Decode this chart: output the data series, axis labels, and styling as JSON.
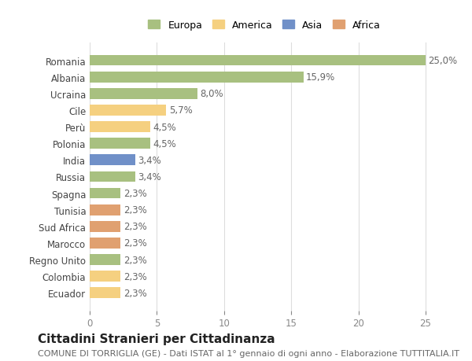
{
  "countries": [
    "Romania",
    "Albania",
    "Ucraina",
    "Cile",
    "Perù",
    "Polonia",
    "India",
    "Russia",
    "Spagna",
    "Tunisia",
    "Sud Africa",
    "Marocco",
    "Regno Unito",
    "Colombia",
    "Ecuador"
  ],
  "values": [
    25.0,
    15.9,
    8.0,
    5.7,
    4.5,
    4.5,
    3.4,
    3.4,
    2.3,
    2.3,
    2.3,
    2.3,
    2.3,
    2.3,
    2.3
  ],
  "colors": [
    "#a8c080",
    "#a8c080",
    "#a8c080",
    "#f5d080",
    "#f5d080",
    "#a8c080",
    "#7090c8",
    "#a8c080",
    "#a8c080",
    "#e0a070",
    "#e0a070",
    "#e0a070",
    "#a8c080",
    "#f5d080",
    "#f5d080"
  ],
  "labels": [
    "25,0%",
    "15,9%",
    "8,0%",
    "5,7%",
    "4,5%",
    "4,5%",
    "3,4%",
    "3,4%",
    "2,3%",
    "2,3%",
    "2,3%",
    "2,3%",
    "2,3%",
    "2,3%",
    "2,3%"
  ],
  "legend_labels": [
    "Europa",
    "America",
    "Asia",
    "Africa"
  ],
  "legend_colors": [
    "#a8c080",
    "#f5d080",
    "#7090c8",
    "#e0a070"
  ],
  "title": "Cittadini Stranieri per Cittadinanza",
  "subtitle": "COMUNE DI TORRIGLIA (GE) - Dati ISTAT al 1° gennaio di ogni anno - Elaborazione TUTTITALIA.IT",
  "xlim": [
    0,
    26
  ],
  "xticks": [
    0,
    5,
    10,
    15,
    20,
    25
  ],
  "bg_color": "#ffffff",
  "grid_color": "#dddddd",
  "bar_height": 0.65,
  "label_fontsize": 8.5,
  "tick_fontsize": 8.5,
  "title_fontsize": 11,
  "subtitle_fontsize": 8
}
